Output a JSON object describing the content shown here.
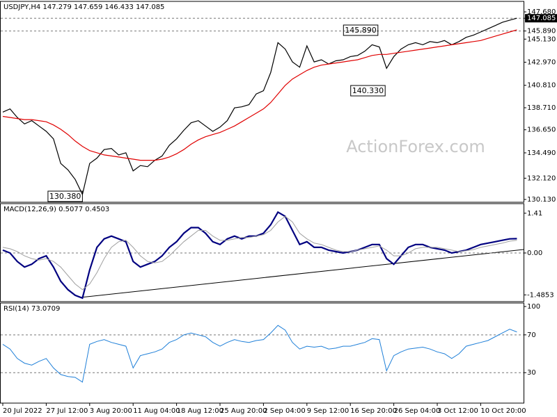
{
  "chart_data": [
    {
      "type": "line",
      "title": "USDJPY,H4  147.279 147.659 146.433 147.085",
      "watermark": "ActionForex.com",
      "annotations": [
        "145.890",
        "140.330",
        "130.380"
      ],
      "ylim": [
        129.87,
        148.66
      ],
      "yticks": [
        {
          "value": 147.68,
          "label": "147.680"
        },
        {
          "value": 147.085,
          "label": "147.085"
        },
        {
          "value": 145.89,
          "label": "145.890"
        },
        {
          "value": 145.13,
          "label": "145.130"
        },
        {
          "value": 142.97,
          "label": "142.970"
        },
        {
          "value": 140.81,
          "label": "140.810"
        },
        {
          "value": 138.71,
          "label": "138.710"
        },
        {
          "value": 136.65,
          "label": "136.650"
        },
        {
          "value": 134.49,
          "label": "134.490"
        },
        {
          "value": 132.12,
          "label": "132.120"
        },
        {
          "value": 130.13,
          "label": "130.130"
        }
      ],
      "levels": [
        147.085,
        145.89
      ],
      "series": [
        {
          "color": "#000000",
          "width": 1.2,
          "values": [
            138.3,
            138.6,
            137.8,
            137.2,
            137.5,
            137.0,
            136.5,
            135.8,
            133.5,
            132.9,
            132.0,
            130.6,
            133.5,
            134.0,
            134.8,
            134.9,
            134.3,
            134.5,
            132.8,
            133.3,
            133.2,
            133.8,
            134.2,
            135.2,
            135.8,
            136.6,
            137.3,
            137.5,
            137.0,
            136.5,
            136.9,
            137.5,
            138.7,
            138.8,
            139.0,
            140.0,
            140.3,
            142.0,
            144.8,
            144.2,
            143.0,
            142.5,
            144.5,
            143.0,
            143.2,
            142.8,
            143.1,
            143.2,
            143.5,
            143.6,
            144.0,
            144.6,
            144.4,
            142.4,
            143.5,
            144.2,
            144.6,
            144.8,
            144.6,
            144.9,
            144.8,
            145.0,
            144.6,
            144.9,
            145.3,
            145.5,
            145.8,
            146.1,
            146.4,
            146.7,
            146.9,
            147.085
          ]
        },
        {
          "color": "#e00000",
          "width": 1.2,
          "values": [
            137.9,
            137.8,
            137.7,
            137.6,
            137.6,
            137.5,
            137.4,
            137.1,
            136.7,
            136.2,
            135.6,
            135.1,
            134.7,
            134.5,
            134.3,
            134.2,
            134.1,
            134.0,
            133.9,
            133.8,
            133.8,
            133.8,
            133.9,
            134.1,
            134.4,
            134.8,
            135.3,
            135.7,
            136.0,
            136.2,
            136.4,
            136.7,
            137.0,
            137.4,
            137.8,
            138.2,
            138.6,
            139.2,
            140.0,
            140.8,
            141.4,
            141.8,
            142.2,
            142.5,
            142.7,
            142.8,
            142.9,
            143.0,
            143.1,
            143.2,
            143.4,
            143.6,
            143.7,
            143.7,
            143.8,
            143.9,
            144.0,
            144.1,
            144.2,
            144.3,
            144.4,
            144.5,
            144.6,
            144.7,
            144.8,
            144.9,
            145.0,
            145.2,
            145.4,
            145.6,
            145.8,
            146.0
          ]
        }
      ]
    },
    {
      "type": "line",
      "title": "MACD(12,26,9) 0.5077 0.4503",
      "ylim": [
        -1.725,
        1.75
      ],
      "yticks": [
        1.41,
        {
          "value": 0,
          "label": "0.00"
        },
        -1.4853
      ],
      "levels": [
        0
      ],
      "series": [
        {
          "color": "#000080",
          "width": 2.2,
          "values": [
            0.1,
            0.0,
            -0.3,
            -0.5,
            -0.4,
            -0.2,
            -0.1,
            -0.5,
            -1.0,
            -1.3,
            -1.5,
            -1.6,
            -0.6,
            0.2,
            0.5,
            0.6,
            0.5,
            0.4,
            -0.3,
            -0.5,
            -0.4,
            -0.3,
            -0.1,
            0.2,
            0.4,
            0.7,
            0.9,
            0.9,
            0.7,
            0.4,
            0.3,
            0.5,
            0.6,
            0.5,
            0.6,
            0.6,
            0.7,
            1.0,
            1.45,
            1.3,
            0.8,
            0.3,
            0.4,
            0.2,
            0.2,
            0.1,
            0.05,
            0.0,
            0.05,
            0.1,
            0.2,
            0.3,
            0.3,
            -0.2,
            -0.4,
            -0.1,
            0.2,
            0.3,
            0.3,
            0.2,
            0.15,
            0.1,
            0.0,
            0.05,
            0.1,
            0.2,
            0.3,
            0.35,
            0.4,
            0.45,
            0.5,
            0.5077
          ]
        },
        {
          "color": "#a0a0a0",
          "width": 1,
          "values": [
            0.2,
            0.15,
            0.05,
            -0.1,
            -0.2,
            -0.25,
            -0.2,
            -0.3,
            -0.5,
            -0.8,
            -1.1,
            -1.3,
            -1.1,
            -0.7,
            -0.2,
            0.2,
            0.4,
            0.45,
            0.2,
            -0.1,
            -0.3,
            -0.35,
            -0.3,
            -0.1,
            0.15,
            0.4,
            0.6,
            0.8,
            0.8,
            0.6,
            0.45,
            0.45,
            0.5,
            0.55,
            0.55,
            0.6,
            0.65,
            0.8,
            1.1,
            1.3,
            1.1,
            0.7,
            0.5,
            0.35,
            0.3,
            0.2,
            0.1,
            0.05,
            0.05,
            0.1,
            0.15,
            0.2,
            0.25,
            0.1,
            -0.1,
            -0.1,
            0.0,
            0.15,
            0.2,
            0.2,
            0.2,
            0.15,
            0.1,
            0.05,
            0.08,
            0.12,
            0.2,
            0.25,
            0.3,
            0.35,
            0.42,
            0.4503
          ]
        }
      ]
    },
    {
      "type": "line",
      "title": "RSI(14) 73.0709",
      "ylim": [
        -2.2,
        103.7
      ],
      "yticks": [
        100,
        70,
        30
      ],
      "levels": [
        70,
        30
      ],
      "categories": [
        "20 Jul 2022",
        null,
        null,
        null,
        null,
        null,
        "27 Jul 12:00",
        null,
        null,
        null,
        null,
        null,
        "3 Aug 20:00",
        null,
        null,
        null,
        null,
        null,
        "11 Aug 04:00",
        null,
        null,
        null,
        null,
        null,
        "18 Aug 12:00",
        null,
        null,
        null,
        null,
        null,
        "25 Aug 20:00",
        null,
        null,
        null,
        null,
        null,
        "2 Sep 04:00",
        null,
        null,
        null,
        null,
        null,
        "9 Sep 12:00",
        null,
        null,
        null,
        null,
        null,
        "16 Sep 20:00",
        null,
        null,
        null,
        null,
        null,
        "26 Sep 04:00",
        null,
        null,
        null,
        null,
        null,
        "3 Oct 12:00",
        null,
        null,
        null,
        null,
        null,
        "10 Oct 20:00",
        null,
        null,
        null,
        null,
        null
      ],
      "series": [
        {
          "color": "#1e7fd8",
          "width": 1,
          "values": [
            60,
            55,
            45,
            40,
            38,
            42,
            45,
            35,
            28,
            26,
            25,
            20,
            60,
            63,
            65,
            62,
            60,
            58,
            35,
            48,
            50,
            52,
            55,
            62,
            65,
            70,
            72,
            70,
            68,
            62,
            58,
            62,
            65,
            63,
            62,
            64,
            65,
            72,
            80,
            75,
            62,
            55,
            58,
            57,
            58,
            55,
            56,
            58,
            58,
            60,
            62,
            66,
            65,
            32,
            48,
            52,
            55,
            56,
            57,
            55,
            52,
            50,
            45,
            50,
            58,
            60,
            62,
            64,
            68,
            72,
            76,
            73.0709
          ]
        }
      ]
    }
  ]
}
